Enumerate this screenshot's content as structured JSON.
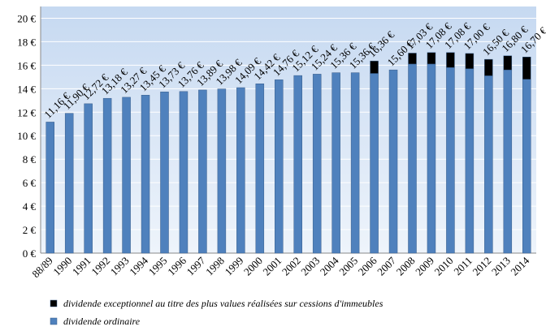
{
  "chart_data": {
    "type": "stacked_bar",
    "categories": [
      "88/89",
      "1990",
      "1991",
      "1992",
      "1993",
      "1994",
      "1995",
      "1996",
      "1997",
      "1998",
      "1999",
      "2000",
      "2001",
      "2002",
      "2003",
      "2004",
      "2005",
      "2006",
      "2007",
      "2008",
      "2009",
      "2010",
      "2011",
      "2012",
      "2013",
      "2014"
    ],
    "series": [
      {
        "name": "dividende ordinaire",
        "color": "#4f81bd",
        "values": [
          11.16,
          11.9,
          12.72,
          13.18,
          13.27,
          13.45,
          13.73,
          13.76,
          13.89,
          13.98,
          14.09,
          14.42,
          14.76,
          15.12,
          15.24,
          15.36,
          15.36,
          15.3,
          15.6,
          16.1,
          16.1,
          15.8,
          15.7,
          15.1,
          15.6,
          14.8
        ]
      },
      {
        "name": "dividende exceptionnel au titre des plus values réalisées sur cessions d'immeubles",
        "color": "#000000",
        "values": [
          0,
          0,
          0,
          0,
          0,
          0,
          0,
          0,
          0,
          0,
          0,
          0,
          0,
          0,
          0,
          0,
          0,
          1.06,
          0,
          0.93,
          0.98,
          1.28,
          1.3,
          1.4,
          1.2,
          1.9
        ]
      }
    ],
    "totals": [
      11.16,
      11.9,
      12.72,
      13.18,
      13.27,
      13.45,
      13.73,
      13.76,
      13.89,
      13.98,
      14.09,
      14.42,
      14.76,
      15.12,
      15.24,
      15.36,
      15.36,
      16.36,
      15.6,
      17.03,
      17.08,
      17.08,
      17.0,
      16.5,
      16.8,
      16.7
    ],
    "total_labels": [
      "11,16 €",
      "11,90 €",
      "12,72 €",
      "13,18 €",
      "13,27 €",
      "13,45 €",
      "13,73 €",
      "13,76 €",
      "13,89 €",
      "13,98 €",
      "14,09 €",
      "14,42 €",
      "14,76 €",
      "15,12 €",
      "15,24 €",
      "15,36 €",
      "15,36 €",
      "16,36 €",
      "15,60 €",
      "17,03 €",
      "17,08 €",
      "17,08 €",
      "17,00 €",
      "16,50 €",
      "16,80 €",
      "16,70 €"
    ],
    "ylim": [
      0,
      21
    ],
    "yticks": [
      {
        "value": 0,
        "label": "0 €"
      },
      {
        "value": 2,
        "label": "2 €"
      },
      {
        "value": 4,
        "label": "4 €"
      },
      {
        "value": 6,
        "label": "6 €"
      },
      {
        "value": 8,
        "label": "8 €"
      },
      {
        "value": 10,
        "label": "10 €"
      },
      {
        "value": 12,
        "label": "12 €"
      },
      {
        "value": 14,
        "label": "14 €"
      },
      {
        "value": 16,
        "label": "16 €"
      },
      {
        "value": 18,
        "label": "18 €"
      },
      {
        "value": 20,
        "label": "20 €"
      }
    ],
    "grid": true
  }
}
